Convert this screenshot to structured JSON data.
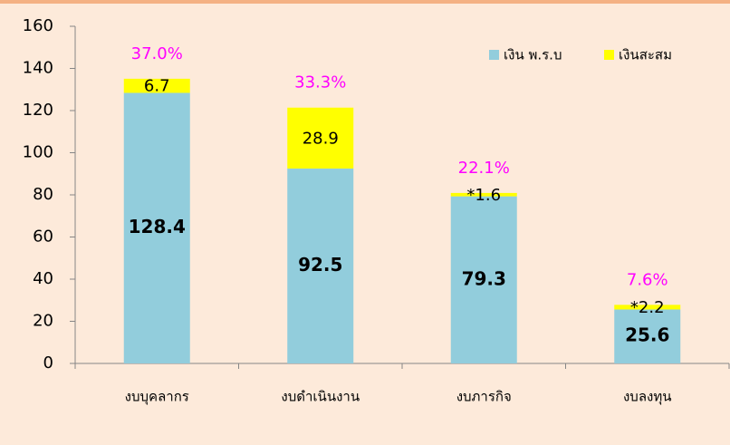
{
  "chart_data": {
    "type": "stacked_bar",
    "categories": [
      "งบบุคลากร",
      "งบดำเนินงาน",
      "งบภารกิจ",
      "งบลงทุน"
    ],
    "series": [
      {
        "name": "เงิน พ.ร.บ",
        "color": "#92cddc",
        "values": [
          128.4,
          92.5,
          79.3,
          25.6
        ]
      },
      {
        "name": "เงินสะสม",
        "color": "#ffff00",
        "values": [
          6.7,
          28.9,
          1.6,
          2.2
        ],
        "value_labels": [
          "6.7",
          "28.9",
          "*1.6",
          "*2.2"
        ]
      }
    ],
    "percent_labels": [
      "37.0%",
      "33.3%",
      "22.1%",
      "7.6%"
    ],
    "ylim": [
      0,
      160
    ],
    "yticks": [
      0,
      20,
      40,
      60,
      80,
      100,
      120,
      140,
      160
    ],
    "grid": false,
    "legend": "top-right"
  }
}
